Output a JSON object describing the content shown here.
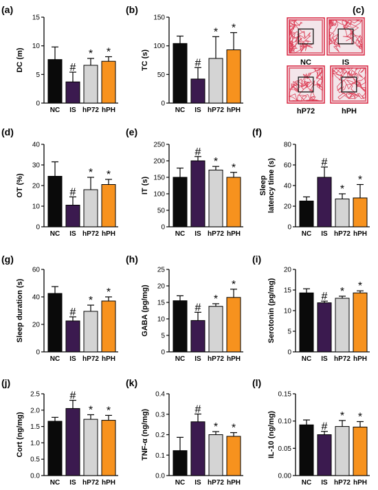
{
  "colors": {
    "NC": "#0a0a0a",
    "IS": "#3b1a4f",
    "hP72": "#d4d4d4",
    "hPH": "#f7921e",
    "track": "#d8243f",
    "box": "#111111"
  },
  "chart_data": [
    {
      "id": "a",
      "label": "(a)",
      "type": "bar",
      "ylabel": "DC (m)",
      "ylim": [
        0,
        15
      ],
      "yticks": [
        "0",
        "5",
        "10",
        "15"
      ],
      "yticks_values": [
        0,
        5,
        10,
        15
      ],
      "categories": [
        "NC",
        "IS",
        "hP72",
        "hPH"
      ],
      "values": [
        7.6,
        3.7,
        6.6,
        7.3
      ],
      "errors": [
        2.2,
        1.7,
        1.2,
        0.8
      ],
      "annotations": [
        "",
        "#",
        "*",
        "*"
      ]
    },
    {
      "id": "b",
      "label": "(b)",
      "type": "bar",
      "ylabel": "TC (s)",
      "ylim": [
        0,
        150
      ],
      "yticks": [
        "0",
        "50",
        "100",
        "150"
      ],
      "yticks_values": [
        0,
        50,
        100,
        150
      ],
      "categories": [
        "NC",
        "IS",
        "hP72",
        "hPH"
      ],
      "values": [
        104,
        42,
        78,
        93
      ],
      "errors": [
        13,
        20,
        38,
        30
      ],
      "annotations": [
        "",
        "#",
        "*",
        "*"
      ]
    },
    {
      "id": "d",
      "label": "(d)",
      "type": "bar",
      "ylabel": "OT (%)",
      "ylim": [
        0,
        40
      ],
      "yticks": [
        "0",
        "10",
        "20",
        "30",
        "40"
      ],
      "yticks_values": [
        0,
        10,
        20,
        30,
        40
      ],
      "categories": [
        "NC",
        "IS",
        "hP72",
        "hPH"
      ],
      "values": [
        24.5,
        10.5,
        18,
        20.5
      ],
      "errors": [
        7,
        4,
        6,
        2.5
      ],
      "annotations": [
        "",
        "#",
        "*",
        "*"
      ]
    },
    {
      "id": "e",
      "label": "(e)",
      "type": "bar",
      "ylabel": "IT (s)",
      "ylim": [
        0,
        250
      ],
      "yticks": [
        "0",
        "50",
        "100",
        "150",
        "200",
        "250"
      ],
      "yticks_values": [
        0,
        50,
        100,
        150,
        200,
        250
      ],
      "categories": [
        "NC",
        "IS",
        "hP72",
        "hPH"
      ],
      "values": [
        150,
        200,
        172,
        150
      ],
      "errors": [
        28,
        13,
        11,
        15
      ],
      "annotations": [
        "",
        "#",
        "*",
        "*"
      ]
    },
    {
      "id": "f",
      "label": "(f)",
      "type": "bar",
      "ylabel": "Sleep\nlatency time (s)",
      "ylim": [
        0,
        80
      ],
      "yticks": [
        "0",
        "20",
        "40",
        "60",
        "80"
      ],
      "yticks_values": [
        0,
        20,
        40,
        60,
        80
      ],
      "categories": [
        "NC",
        "IS",
        "hP72",
        "hPH"
      ],
      "values": [
        25,
        48,
        27,
        28
      ],
      "errors": [
        4,
        10,
        5,
        13
      ],
      "annotations": [
        "",
        "#",
        "*",
        "*"
      ]
    },
    {
      "id": "g",
      "label": "(g)",
      "type": "bar",
      "ylabel": "Sleep duration (s)",
      "ylim": [
        0,
        60
      ],
      "yticks": [
        "0",
        "20",
        "40",
        "60"
      ],
      "yticks_values": [
        0,
        20,
        40,
        60
      ],
      "categories": [
        "NC",
        "IS",
        "hP72",
        "hPH"
      ],
      "values": [
        42.5,
        22.5,
        29.5,
        37
      ],
      "errors": [
        5,
        3,
        4.5,
        3
      ],
      "annotations": [
        "",
        "#",
        "*",
        "*"
      ]
    },
    {
      "id": "h",
      "label": "(h)",
      "type": "bar",
      "ylabel": "GABA (pg/mg)",
      "ylim": [
        0,
        25
      ],
      "yticks": [
        "0",
        "5",
        "10",
        "15",
        "20",
        "25"
      ],
      "yticks_values": [
        0,
        5,
        10,
        15,
        20,
        25
      ],
      "categories": [
        "NC",
        "IS",
        "hP72",
        "hPH"
      ],
      "values": [
        15.5,
        9.5,
        13.8,
        16.5
      ],
      "errors": [
        1.5,
        2.5,
        0.8,
        2.5
      ],
      "annotations": [
        "",
        "#",
        "*",
        "*"
      ]
    },
    {
      "id": "i",
      "label": "(i)",
      "type": "bar",
      "ylabel": "Serotonin (pg/mg)",
      "ylim": [
        0,
        20
      ],
      "yticks": [
        "0",
        "5",
        "10",
        "15",
        "20"
      ],
      "yticks_values": [
        0,
        5,
        10,
        15,
        20
      ],
      "categories": [
        "NC",
        "IS",
        "hP72",
        "hPH"
      ],
      "values": [
        14.3,
        11.9,
        13.0,
        14.3
      ],
      "errors": [
        1.0,
        0.4,
        0.5,
        0.5
      ],
      "annotations": [
        "",
        "#",
        "*",
        "*"
      ]
    },
    {
      "id": "j",
      "label": "(j)",
      "type": "bar",
      "ylabel": "Cort (ng/mg)",
      "ylim": [
        0,
        2.5
      ],
      "yticks": [
        "0.0",
        "0.5",
        "1.0",
        "1.5",
        "2.0",
        "2.5"
      ],
      "yticks_values": [
        0,
        0.5,
        1.0,
        1.5,
        2.0,
        2.5
      ],
      "categories": [
        "NC",
        "IS",
        "hP72",
        "hPH"
      ],
      "values": [
        1.66,
        2.05,
        1.72,
        1.69
      ],
      "errors": [
        0.12,
        0.25,
        0.14,
        0.15
      ],
      "annotations": [
        "",
        "#",
        "*",
        "*"
      ]
    },
    {
      "id": "k",
      "label": "(k)",
      "type": "bar",
      "ylabel": "TNF-α (ng/mg)",
      "ylim": [
        0,
        0.4
      ],
      "yticks": [
        "0.0",
        "0.1",
        "0.2",
        "0.3",
        "0.4"
      ],
      "yticks_values": [
        0,
        0.1,
        0.2,
        0.3,
        0.4
      ],
      "categories": [
        "NC",
        "IS",
        "hP72",
        "hPH"
      ],
      "values": [
        0.122,
        0.263,
        0.2,
        0.192
      ],
      "errors": [
        0.065,
        0.038,
        0.015,
        0.018
      ],
      "annotations": [
        "",
        "#",
        "*",
        "*"
      ]
    },
    {
      "id": "l",
      "label": "(l)",
      "type": "bar",
      "ylabel": "IL-10 (ng/mg)",
      "ylim": [
        0,
        0.15
      ],
      "yticks": [
        "0.00",
        "0.05",
        "0.10",
        "0.15"
      ],
      "yticks_values": [
        0,
        0.05,
        0.1,
        0.15
      ],
      "categories": [
        "NC",
        "IS",
        "hP72",
        "hPH"
      ],
      "values": [
        0.093,
        0.075,
        0.09,
        0.089
      ],
      "errors": [
        0.009,
        0.006,
        0.011,
        0.01
      ],
      "annotations": [
        "",
        "#",
        "*",
        "*"
      ]
    }
  ],
  "tracking_panel": {
    "label": "(c)",
    "groups": [
      "NC",
      "IS",
      "hP72",
      "hPH"
    ]
  }
}
